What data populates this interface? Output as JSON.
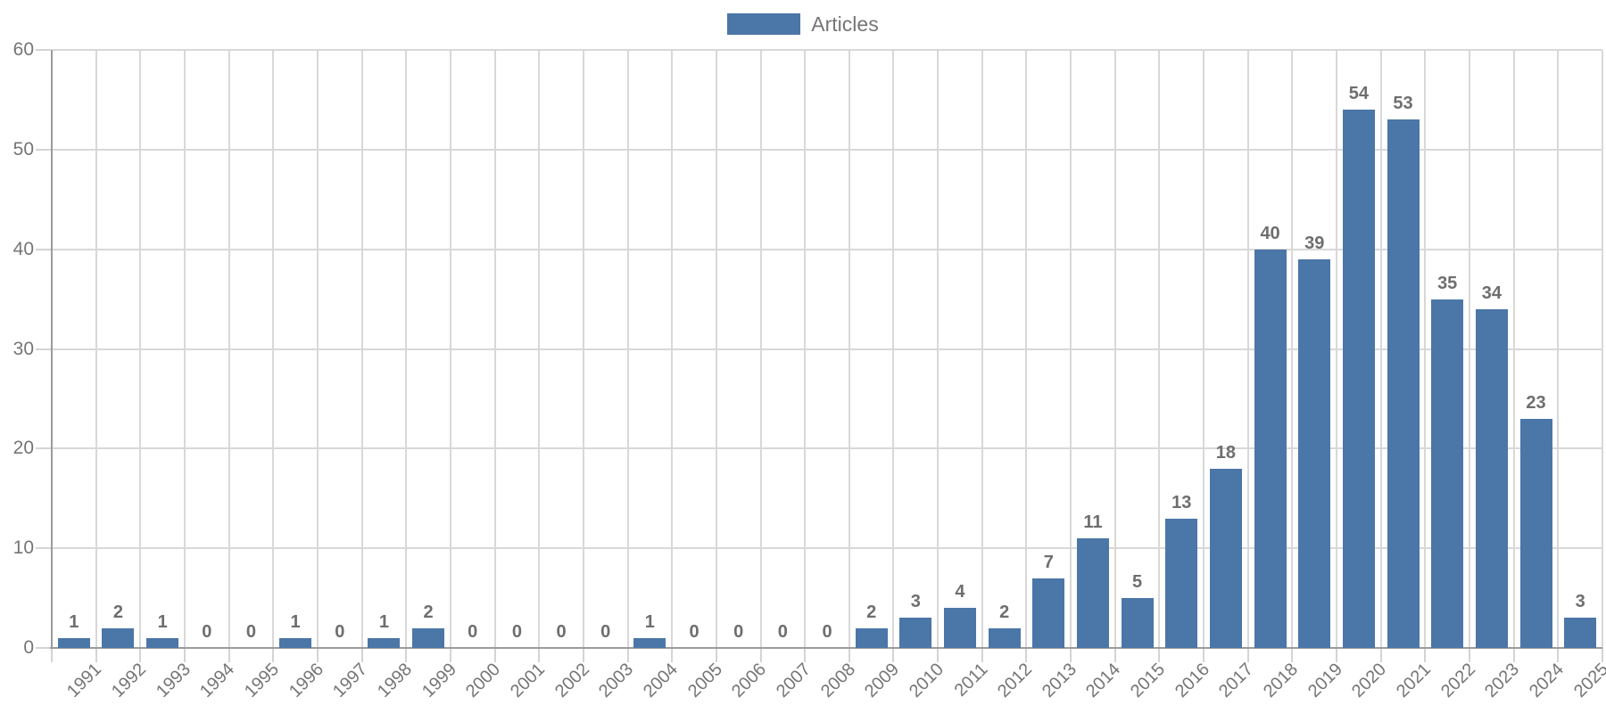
{
  "legend": {
    "label": "Articles"
  },
  "colors": {
    "bar": "#4b76a8",
    "axis_label": "#757575",
    "value_label": "#6e6e6e",
    "legend_text": "#757575",
    "gridline": "#d8d8d8",
    "tick": "#d4d4d4",
    "axis_line": "#9b9b9b",
    "background": "#ffffff"
  },
  "chart_data": {
    "type": "bar",
    "title": "",
    "xlabel": "",
    "ylabel": "",
    "series_name": "Articles",
    "categories": [
      "1991",
      "1992",
      "1993",
      "1994",
      "1995",
      "1996",
      "1997",
      "1998",
      "1999",
      "2000",
      "2001",
      "2002",
      "2003",
      "2004",
      "2005",
      "2006",
      "2007",
      "2008",
      "2009",
      "2010",
      "2011",
      "2012",
      "2013",
      "2014",
      "2015",
      "2016",
      "2017",
      "2018",
      "2019",
      "2020",
      "2021",
      "2022",
      "2023",
      "2024",
      "2025"
    ],
    "values": [
      1,
      2,
      1,
      0,
      0,
      1,
      0,
      1,
      2,
      0,
      0,
      0,
      0,
      1,
      0,
      0,
      0,
      0,
      2,
      3,
      4,
      2,
      7,
      11,
      5,
      13,
      18,
      40,
      39,
      54,
      53,
      35,
      34,
      23,
      3
    ],
    "ylim": [
      0,
      60
    ],
    "yticks": [
      0,
      10,
      20,
      30,
      40,
      50,
      60
    ],
    "grid": true,
    "value_labels": true,
    "legend_position": "top-center",
    "x_tick_rotation": -45
  }
}
